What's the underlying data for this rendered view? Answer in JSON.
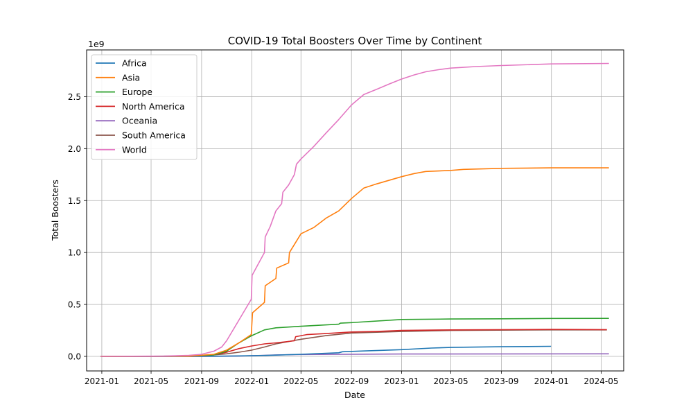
{
  "chart_data": {
    "type": "line",
    "title": "COVID-19 Total Boosters Over Time by Continent",
    "xlabel": "Date",
    "ylabel": "Total Boosters",
    "y_offset_label": "1e9",
    "x_ticks": [
      "2021-01",
      "2021-05",
      "2021-09",
      "2022-01",
      "2022-05",
      "2022-09",
      "2023-01",
      "2023-05",
      "2023-09",
      "2024-01",
      "2024-05"
    ],
    "y_ticks": [
      "0.0",
      "0.5",
      "1.0",
      "1.5",
      "2.0",
      "2.5"
    ],
    "y_tick_values": [
      0,
      0.5,
      1.0,
      1.5,
      2.0,
      2.5
    ],
    "xlim": [
      "2020-11-25",
      "2024-06-25"
    ],
    "ylim": [
      -0.14,
      2.95
    ],
    "y_unit": "billions",
    "grid": true,
    "legend_position": "upper-left",
    "series": [
      {
        "name": "Africa",
        "color": "#1f77b4",
        "points": [
          [
            "2020-12-29",
            0
          ],
          [
            "2021-08-01",
            0
          ],
          [
            "2021-11-01",
            0.003
          ],
          [
            "2022-01-01",
            0.006
          ],
          [
            "2022-03-01",
            0.012
          ],
          [
            "2022-05-01",
            0.02
          ],
          [
            "2022-08-01",
            0.035
          ],
          [
            "2022-08-10",
            0.045
          ],
          [
            "2022-10-01",
            0.052
          ],
          [
            "2023-01-01",
            0.065
          ],
          [
            "2023-03-15",
            0.08
          ],
          [
            "2023-05-01",
            0.086
          ],
          [
            "2023-09-01",
            0.093
          ],
          [
            "2023-12-31",
            0.097
          ]
        ]
      },
      {
        "name": "Asia",
        "color": "#ff7f0e",
        "points": [
          [
            "2020-12-29",
            0
          ],
          [
            "2021-08-01",
            0.002
          ],
          [
            "2021-10-01",
            0.02
          ],
          [
            "2021-11-01",
            0.06
          ],
          [
            "2021-12-01",
            0.13
          ],
          [
            "2021-12-31",
            0.21
          ],
          [
            "2022-01-03",
            0.42
          ],
          [
            "2022-02-01",
            0.52
          ],
          [
            "2022-02-03",
            0.68
          ],
          [
            "2022-03-01",
            0.75
          ],
          [
            "2022-03-03",
            0.85
          ],
          [
            "2022-04-01",
            0.9
          ],
          [
            "2022-04-03",
            1.0
          ],
          [
            "2022-05-01",
            1.18
          ],
          [
            "2022-06-01",
            1.24
          ],
          [
            "2022-07-01",
            1.33
          ],
          [
            "2022-08-01",
            1.4
          ],
          [
            "2022-09-01",
            1.52
          ],
          [
            "2022-10-01",
            1.62
          ],
          [
            "2022-11-01",
            1.66
          ],
          [
            "2023-01-01",
            1.73
          ],
          [
            "2023-02-01",
            1.76
          ],
          [
            "2023-03-01",
            1.78
          ],
          [
            "2023-05-01",
            1.79
          ],
          [
            "2023-06-01",
            1.8
          ],
          [
            "2023-09-01",
            1.81
          ],
          [
            "2024-01-01",
            1.815
          ],
          [
            "2024-05-20",
            1.815
          ]
        ]
      },
      {
        "name": "Europe",
        "color": "#2ca02c",
        "points": [
          [
            "2020-12-29",
            0
          ],
          [
            "2021-08-01",
            0.003
          ],
          [
            "2021-10-01",
            0.015
          ],
          [
            "2021-11-01",
            0.05
          ],
          [
            "2021-12-01",
            0.13
          ],
          [
            "2022-01-01",
            0.2
          ],
          [
            "2022-02-01",
            0.255
          ],
          [
            "2022-03-01",
            0.275
          ],
          [
            "2022-05-01",
            0.29
          ],
          [
            "2022-08-01",
            0.31
          ],
          [
            "2022-08-05",
            0.32
          ],
          [
            "2022-09-01",
            0.325
          ],
          [
            "2023-01-01",
            0.355
          ],
          [
            "2023-05-01",
            0.36
          ],
          [
            "2023-09-01",
            0.362
          ],
          [
            "2024-01-01",
            0.365
          ],
          [
            "2024-05-20",
            0.366
          ]
        ]
      },
      {
        "name": "North America",
        "color": "#d62728",
        "points": [
          [
            "2020-12-29",
            0
          ],
          [
            "2021-08-01",
            0.002
          ],
          [
            "2021-10-01",
            0.015
          ],
          [
            "2021-11-01",
            0.04
          ],
          [
            "2021-12-01",
            0.075
          ],
          [
            "2022-01-01",
            0.1
          ],
          [
            "2022-02-01",
            0.12
          ],
          [
            "2022-03-01",
            0.13
          ],
          [
            "2022-04-15",
            0.15
          ],
          [
            "2022-04-18",
            0.19
          ],
          [
            "2022-05-15",
            0.21
          ],
          [
            "2022-07-01",
            0.22
          ],
          [
            "2022-09-01",
            0.235
          ],
          [
            "2022-11-01",
            0.24
          ],
          [
            "2023-01-01",
            0.25
          ],
          [
            "2023-05-01",
            0.255
          ],
          [
            "2024-01-01",
            0.26
          ],
          [
            "2024-05-15",
            0.258
          ]
        ]
      },
      {
        "name": "Oceania",
        "color": "#9467bd",
        "points": [
          [
            "2020-12-29",
            0
          ],
          [
            "2021-10-01",
            0.0005
          ],
          [
            "2021-12-01",
            0.003
          ],
          [
            "2022-02-01",
            0.01
          ],
          [
            "2022-03-01",
            0.014
          ],
          [
            "2022-05-01",
            0.018
          ],
          [
            "2022-09-01",
            0.021
          ],
          [
            "2023-01-01",
            0.023
          ],
          [
            "2024-05-20",
            0.025
          ]
        ]
      },
      {
        "name": "South America",
        "color": "#8c564b",
        "points": [
          [
            "2020-12-29",
            0
          ],
          [
            "2021-08-01",
            0.003
          ],
          [
            "2021-10-01",
            0.015
          ],
          [
            "2021-11-01",
            0.025
          ],
          [
            "2021-12-01",
            0.04
          ],
          [
            "2022-01-01",
            0.06
          ],
          [
            "2022-02-01",
            0.09
          ],
          [
            "2022-03-01",
            0.12
          ],
          [
            "2022-05-01",
            0.165
          ],
          [
            "2022-07-01",
            0.2
          ],
          [
            "2022-09-01",
            0.225
          ],
          [
            "2023-01-01",
            0.24
          ],
          [
            "2023-05-01",
            0.25
          ],
          [
            "2024-01-01",
            0.255
          ],
          [
            "2024-05-15",
            0.255
          ]
        ]
      },
      {
        "name": "World",
        "color": "#e377c2",
        "points": [
          [
            "2020-12-29",
            0
          ],
          [
            "2021-06-01",
            0.003
          ],
          [
            "2021-08-01",
            0.01
          ],
          [
            "2021-09-01",
            0.02
          ],
          [
            "2021-10-01",
            0.05
          ],
          [
            "2021-10-20",
            0.09
          ],
          [
            "2021-11-01",
            0.15
          ],
          [
            "2021-12-01",
            0.35
          ],
          [
            "2021-12-31",
            0.55
          ],
          [
            "2022-01-02",
            0.78
          ],
          [
            "2022-02-01",
            1.0
          ],
          [
            "2022-02-03",
            1.15
          ],
          [
            "2022-02-15",
            1.25
          ],
          [
            "2022-03-01",
            1.4
          ],
          [
            "2022-03-15",
            1.47
          ],
          [
            "2022-03-18",
            1.58
          ],
          [
            "2022-04-01",
            1.65
          ],
          [
            "2022-04-15",
            1.75
          ],
          [
            "2022-04-20",
            1.85
          ],
          [
            "2022-05-01",
            1.9
          ],
          [
            "2022-06-01",
            2.02
          ],
          [
            "2022-07-01",
            2.15
          ],
          [
            "2022-08-01",
            2.28
          ],
          [
            "2022-09-01",
            2.42
          ],
          [
            "2022-10-01",
            2.52
          ],
          [
            "2022-11-01",
            2.57
          ],
          [
            "2022-12-01",
            2.62
          ],
          [
            "2023-01-01",
            2.67
          ],
          [
            "2023-02-01",
            2.71
          ],
          [
            "2023-03-01",
            2.74
          ],
          [
            "2023-04-01",
            2.76
          ],
          [
            "2023-05-01",
            2.775
          ],
          [
            "2023-07-01",
            2.79
          ],
          [
            "2023-09-01",
            2.8
          ],
          [
            "2024-01-01",
            2.815
          ],
          [
            "2024-05-20",
            2.82
          ]
        ]
      }
    ]
  }
}
